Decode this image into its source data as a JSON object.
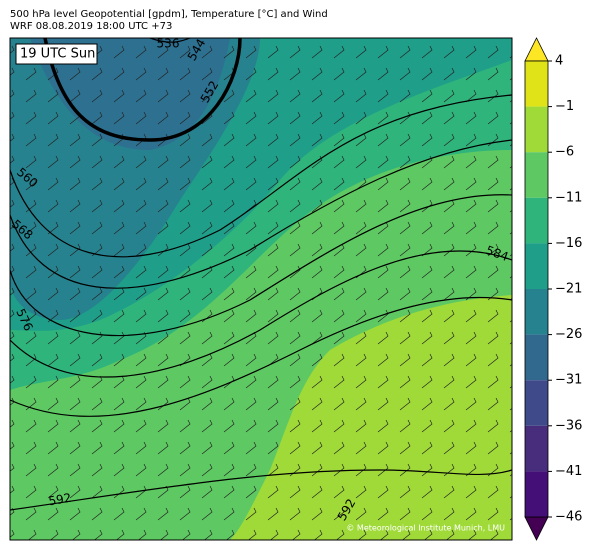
{
  "header": {
    "line1": "500 hPa level Geopotential [gpdm], Temperature [°C] and Wind",
    "line2": "WRF 08.08.2019 18:00 UTC +73"
  },
  "map": {
    "time_label": "19 UTC Sun",
    "contour_labels": [
      536,
      544,
      552,
      560,
      568,
      576,
      584,
      592,
      592
    ],
    "copyright": "© Meteorological Institute Munich, LMU"
  },
  "colorbar": {
    "ticks": [
      4,
      {
        "value": -1,
        "label": "−1"
      },
      {
        "value": -6,
        "label": "−6"
      },
      {
        "value": -11,
        "label": "−11"
      },
      {
        "value": -16,
        "label": "−16"
      },
      {
        "value": -21,
        "label": "−21"
      },
      {
        "value": -26,
        "label": "−26"
      },
      {
        "value": -31,
        "label": "−31"
      },
      {
        "value": -36,
        "label": "−36"
      },
      {
        "value": -41,
        "label": "−41"
      },
      {
        "value": -46,
        "label": "−46"
      }
    ],
    "colors": [
      "#fde725",
      "#dfe318",
      "#a0da39",
      "#5ec962",
      "#2fb47c",
      "#1f9e89",
      "#26828e",
      "#31688e",
      "#3e4a89",
      "#472d7b",
      "#440f76",
      "#440154"
    ]
  }
}
